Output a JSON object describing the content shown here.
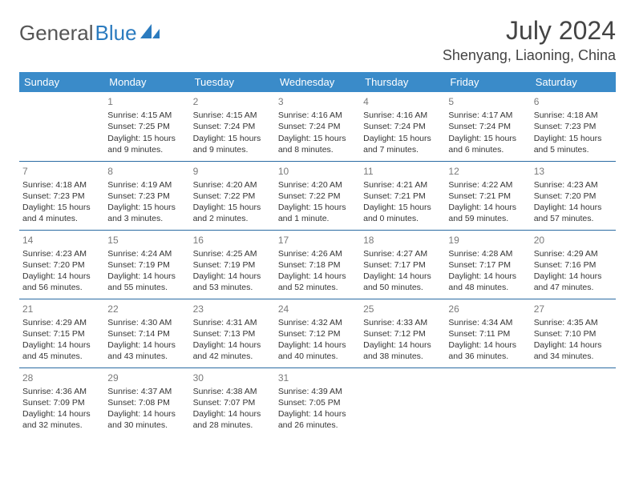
{
  "brand": {
    "part1": "General",
    "part2": "Blue"
  },
  "title": "July 2024",
  "location": "Shenyang, Liaoning, China",
  "colors": {
    "header_bg": "#3a8bc9",
    "header_text": "#ffffff",
    "row_border": "#2b6ca3",
    "daynum": "#7a7a7a",
    "body_text": "#353535",
    "logo_gray": "#555555",
    "logo_blue": "#2b7bbf"
  },
  "weekdays": [
    "Sunday",
    "Monday",
    "Tuesday",
    "Wednesday",
    "Thursday",
    "Friday",
    "Saturday"
  ],
  "weeks": [
    [
      null,
      {
        "n": "1",
        "sr": "4:15 AM",
        "ss": "7:25 PM",
        "dl": "15 hours and 9 minutes."
      },
      {
        "n": "2",
        "sr": "4:15 AM",
        "ss": "7:24 PM",
        "dl": "15 hours and 9 minutes."
      },
      {
        "n": "3",
        "sr": "4:16 AM",
        "ss": "7:24 PM",
        "dl": "15 hours and 8 minutes."
      },
      {
        "n": "4",
        "sr": "4:16 AM",
        "ss": "7:24 PM",
        "dl": "15 hours and 7 minutes."
      },
      {
        "n": "5",
        "sr": "4:17 AM",
        "ss": "7:24 PM",
        "dl": "15 hours and 6 minutes."
      },
      {
        "n": "6",
        "sr": "4:18 AM",
        "ss": "7:23 PM",
        "dl": "15 hours and 5 minutes."
      }
    ],
    [
      {
        "n": "7",
        "sr": "4:18 AM",
        "ss": "7:23 PM",
        "dl": "15 hours and 4 minutes."
      },
      {
        "n": "8",
        "sr": "4:19 AM",
        "ss": "7:23 PM",
        "dl": "15 hours and 3 minutes."
      },
      {
        "n": "9",
        "sr": "4:20 AM",
        "ss": "7:22 PM",
        "dl": "15 hours and 2 minutes."
      },
      {
        "n": "10",
        "sr": "4:20 AM",
        "ss": "7:22 PM",
        "dl": "15 hours and 1 minute."
      },
      {
        "n": "11",
        "sr": "4:21 AM",
        "ss": "7:21 PM",
        "dl": "15 hours and 0 minutes."
      },
      {
        "n": "12",
        "sr": "4:22 AM",
        "ss": "7:21 PM",
        "dl": "14 hours and 59 minutes."
      },
      {
        "n": "13",
        "sr": "4:23 AM",
        "ss": "7:20 PM",
        "dl": "14 hours and 57 minutes."
      }
    ],
    [
      {
        "n": "14",
        "sr": "4:23 AM",
        "ss": "7:20 PM",
        "dl": "14 hours and 56 minutes."
      },
      {
        "n": "15",
        "sr": "4:24 AM",
        "ss": "7:19 PM",
        "dl": "14 hours and 55 minutes."
      },
      {
        "n": "16",
        "sr": "4:25 AM",
        "ss": "7:19 PM",
        "dl": "14 hours and 53 minutes."
      },
      {
        "n": "17",
        "sr": "4:26 AM",
        "ss": "7:18 PM",
        "dl": "14 hours and 52 minutes."
      },
      {
        "n": "18",
        "sr": "4:27 AM",
        "ss": "7:17 PM",
        "dl": "14 hours and 50 minutes."
      },
      {
        "n": "19",
        "sr": "4:28 AM",
        "ss": "7:17 PM",
        "dl": "14 hours and 48 minutes."
      },
      {
        "n": "20",
        "sr": "4:29 AM",
        "ss": "7:16 PM",
        "dl": "14 hours and 47 minutes."
      }
    ],
    [
      {
        "n": "21",
        "sr": "4:29 AM",
        "ss": "7:15 PM",
        "dl": "14 hours and 45 minutes."
      },
      {
        "n": "22",
        "sr": "4:30 AM",
        "ss": "7:14 PM",
        "dl": "14 hours and 43 minutes."
      },
      {
        "n": "23",
        "sr": "4:31 AM",
        "ss": "7:13 PM",
        "dl": "14 hours and 42 minutes."
      },
      {
        "n": "24",
        "sr": "4:32 AM",
        "ss": "7:12 PM",
        "dl": "14 hours and 40 minutes."
      },
      {
        "n": "25",
        "sr": "4:33 AM",
        "ss": "7:12 PM",
        "dl": "14 hours and 38 minutes."
      },
      {
        "n": "26",
        "sr": "4:34 AM",
        "ss": "7:11 PM",
        "dl": "14 hours and 36 minutes."
      },
      {
        "n": "27",
        "sr": "4:35 AM",
        "ss": "7:10 PM",
        "dl": "14 hours and 34 minutes."
      }
    ],
    [
      {
        "n": "28",
        "sr": "4:36 AM",
        "ss": "7:09 PM",
        "dl": "14 hours and 32 minutes."
      },
      {
        "n": "29",
        "sr": "4:37 AM",
        "ss": "7:08 PM",
        "dl": "14 hours and 30 minutes."
      },
      {
        "n": "30",
        "sr": "4:38 AM",
        "ss": "7:07 PM",
        "dl": "14 hours and 28 minutes."
      },
      {
        "n": "31",
        "sr": "4:39 AM",
        "ss": "7:05 PM",
        "dl": "14 hours and 26 minutes."
      },
      null,
      null,
      null
    ]
  ],
  "labels": {
    "sunrise": "Sunrise: ",
    "sunset": "Sunset: ",
    "daylight": "Daylight: "
  }
}
